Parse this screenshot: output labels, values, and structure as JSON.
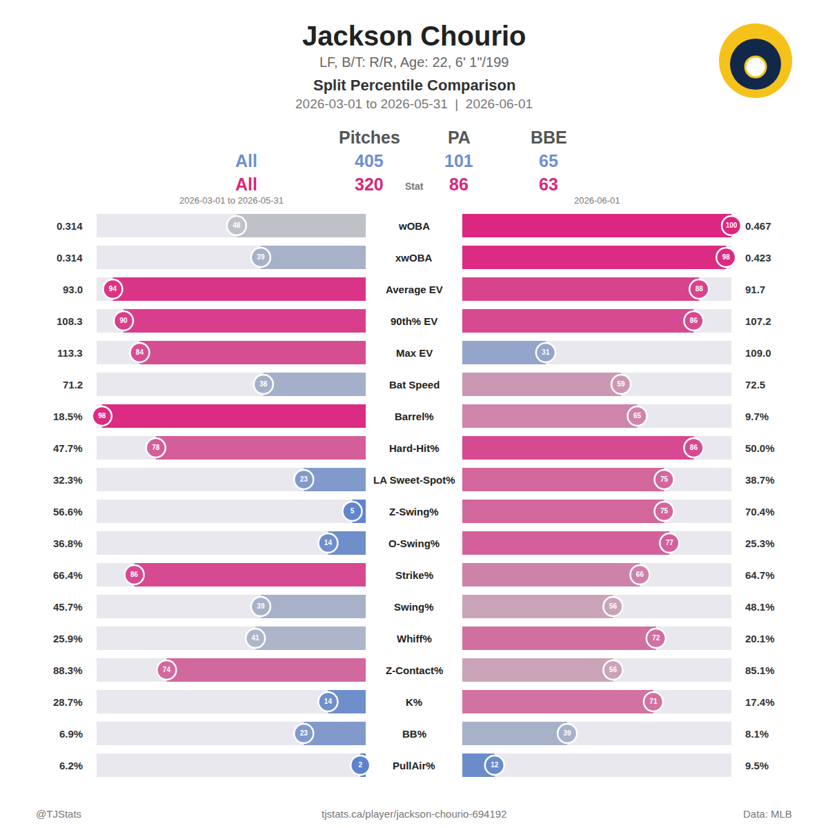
{
  "title": "Jackson Chourio",
  "subtitle": "LF, B/T: R/R, Age: 22, 6' 1\"/199",
  "heading": "Split Percentile Comparison",
  "dates": "2026-03-01 to 2026-05-31  |  2026-06-01",
  "summary": {
    "columns": [
      "Pitches",
      "PA",
      "BBE"
    ],
    "stat_label": "Stat",
    "rows": [
      {
        "name": "All",
        "color": "#6f8fcf",
        "values": [
          405,
          101,
          65
        ]
      },
      {
        "name": "All",
        "color": "#d9267a",
        "values": [
          320,
          86,
          63
        ]
      }
    ]
  },
  "footer": {
    "left": "@TJStats",
    "center": "tjstats.ca/player/jackson-chourio-694192",
    "right": "Data: MLB"
  },
  "chart_data": [
    {
      "type": "bar",
      "orientation": "horizontal",
      "subtitle": "2026-03-01 to 2026-05-31",
      "categories": [
        "wOBA",
        "xwOBA",
        "Average EV",
        "90th% EV",
        "Max EV",
        "Bat Speed",
        "Barrel%",
        "Hard-Hit%",
        "LA Sweet-Spot%",
        "Z-Swing%",
        "O-Swing%",
        "Strike%",
        "Swing%",
        "Whiff%",
        "Z-Contact%",
        "K%",
        "BB%",
        "PullAir%"
      ],
      "values": [
        48,
        39,
        94,
        90,
        84,
        38,
        98,
        78,
        23,
        5,
        14,
        86,
        39,
        41,
        74,
        14,
        23,
        2
      ],
      "stat_values": [
        "0.314",
        "0.314",
        "93.0",
        "108.3",
        "113.3",
        "71.2",
        "18.5%",
        "47.7%",
        "32.3%",
        "56.6%",
        "36.8%",
        "66.4%",
        "45.7%",
        "25.9%",
        "88.3%",
        "28.7%",
        "6.9%",
        "6.2%"
      ],
      "xlim": [
        0,
        100
      ],
      "data_labels": true,
      "tick_labels": "y"
    },
    {
      "type": "bar",
      "orientation": "horizontal",
      "subtitle": "2026-06-01",
      "categories": [
        "wOBA",
        "xwOBA",
        "Average EV",
        "90th% EV",
        "Max EV",
        "Bat Speed",
        "Barrel%",
        "Hard-Hit%",
        "LA Sweet-Spot%",
        "Z-Swing%",
        "O-Swing%",
        "Strike%",
        "Swing%",
        "Whiff%",
        "Z-Contact%",
        "K%",
        "BB%",
        "PullAir%"
      ],
      "values": [
        100,
        98,
        88,
        86,
        31,
        59,
        65,
        86,
        75,
        75,
        77,
        66,
        56,
        72,
        56,
        71,
        39,
        12
      ],
      "stat_values": [
        "0.467",
        "0.423",
        "91.7",
        "107.2",
        "109.0",
        "72.5",
        "9.7%",
        "50.0%",
        "38.7%",
        "70.4%",
        "25.3%",
        "64.7%",
        "48.1%",
        "20.1%",
        "85.1%",
        "17.4%",
        "8.1%",
        "9.5%"
      ],
      "xlim": [
        0,
        100
      ],
      "data_labels": true,
      "tick_labels": "y"
    }
  ]
}
